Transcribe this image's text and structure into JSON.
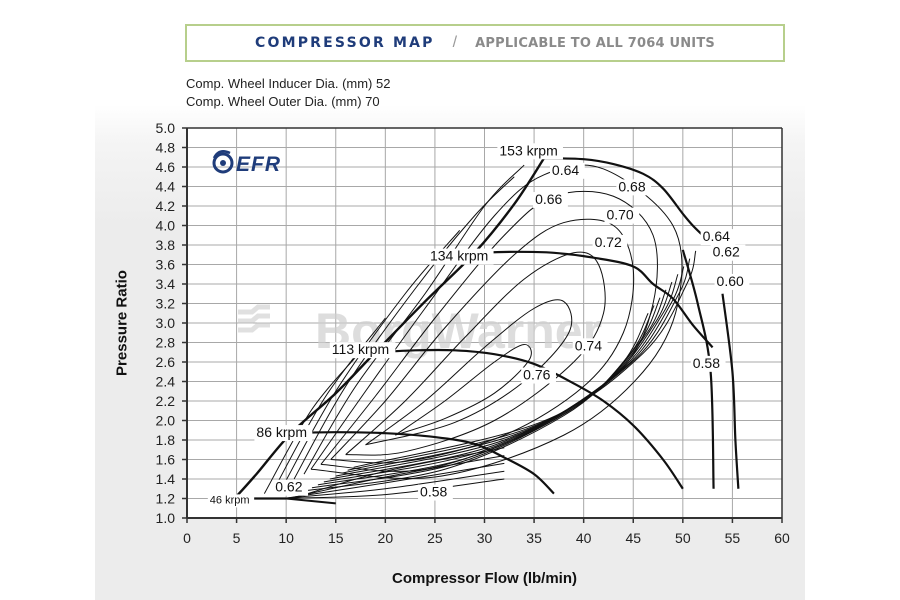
{
  "header": {
    "title": "COMPRESSOR MAP",
    "separator": "/",
    "subtitle": "APPLICABLE TO ALL 7064 UNITS",
    "accent_color": "#1f3c7a",
    "border_color": "#b7cf8c"
  },
  "specs": [
    "Comp. Wheel Inducer Dia. (mm) 52",
    "Comp. Wheel Outer Dia. (mm) 70"
  ],
  "logo": {
    "text": "EFR",
    "icon": "turbo-swirl-icon",
    "color": "#1f3c7a"
  },
  "watermark": {
    "text": "BorgWarner"
  },
  "chart_data": {
    "type": "line",
    "title": "COMPRESSOR MAP / APPLICABLE TO ALL 7064 UNITS",
    "xlabel": "Compressor Flow (lb/min)",
    "ylabel": "Pressure Ratio",
    "xlim": [
      0,
      60
    ],
    "ylim": [
      1.0,
      5.0
    ],
    "grid": true,
    "x_ticks": [
      "0",
      "5",
      "10",
      "15",
      "20",
      "25",
      "30",
      "35",
      "40",
      "45",
      "50",
      "55",
      "60"
    ],
    "y_ticks": [
      "1.0",
      "1.2",
      "1.4",
      "1.6",
      "1.8",
      "2.0",
      "2.2",
      "2.4",
      "2.6",
      "2.8",
      "3.0",
      "3.2",
      "3.4",
      "3.6",
      "3.8",
      "4.0",
      "4.2",
      "4.4",
      "4.6",
      "4.8",
      "5.0"
    ],
    "speed_lines": [
      {
        "name": "153 krpm",
        "points": [
          [
            36,
            4.69
          ],
          [
            40,
            4.68
          ],
          [
            43,
            4.63
          ],
          [
            46,
            4.53
          ],
          [
            48,
            4.38
          ],
          [
            50,
            4.12
          ],
          [
            51,
            4.0
          ],
          [
            52,
            3.9
          ]
        ]
      },
      {
        "name": "134 krpm",
        "points": [
          [
            29,
            3.72
          ],
          [
            33,
            3.73
          ],
          [
            37,
            3.72
          ],
          [
            41,
            3.67
          ],
          [
            45,
            3.58
          ],
          [
            47,
            3.4
          ],
          [
            49,
            3.25
          ],
          [
            51,
            2.98
          ],
          [
            53,
            2.75
          ]
        ]
      },
      {
        "name": "113 krpm",
        "points": [
          [
            19,
            2.7
          ],
          [
            23,
            2.72
          ],
          [
            27,
            2.72
          ],
          [
            31,
            2.68
          ],
          [
            35,
            2.58
          ],
          [
            39,
            2.38
          ],
          [
            42,
            2.2
          ],
          [
            45,
            1.95
          ],
          [
            48,
            1.6
          ],
          [
            50,
            1.3
          ]
        ]
      },
      {
        "name": "86 krpm",
        "points": [
          [
            10.5,
            1.87
          ],
          [
            15,
            1.88
          ],
          [
            20,
            1.87
          ],
          [
            25,
            1.83
          ],
          [
            29,
            1.76
          ],
          [
            32,
            1.62
          ],
          [
            35,
            1.45
          ],
          [
            37,
            1.25
          ]
        ]
      },
      {
        "name": "46 krpm",
        "points": [
          [
            4.8,
            1.2
          ],
          [
            7,
            1.2
          ],
          [
            10,
            1.2
          ]
        ]
      }
    ],
    "surge_line": [
      [
        4.8,
        1.2
      ],
      [
        7,
        1.45
      ],
      [
        10.5,
        1.87
      ],
      [
        15,
        2.28
      ],
      [
        19,
        2.7
      ],
      [
        24,
        3.22
      ],
      [
        29,
        3.72
      ],
      [
        33,
        4.22
      ],
      [
        36,
        4.69
      ]
    ],
    "choke_lines": [
      {
        "points": [
          [
            50,
            3.75
          ],
          [
            51.5,
            3.2
          ],
          [
            52.8,
            2.5
          ],
          [
            53.1,
            1.3
          ]
        ]
      },
      {
        "points": [
          [
            54,
            3.3
          ],
          [
            55,
            2.5
          ],
          [
            55.3,
            1.8
          ],
          [
            55.6,
            1.3
          ]
        ]
      }
    ],
    "efficiency_islands": [
      "0.76",
      "0.74",
      "0.72",
      "0.70",
      "0.68",
      "0.66",
      "0.64",
      "0.62",
      "0.60",
      "0.58"
    ],
    "annotations": [
      {
        "text": "153 krpm",
        "x": 31.5,
        "y": 4.72
      },
      {
        "text": "134 krpm",
        "x": 24.5,
        "y": 3.64
      },
      {
        "text": "113 krpm",
        "x": 14.6,
        "y": 2.68
      },
      {
        "text": "86 krpm",
        "x": 7.0,
        "y": 1.83
      },
      {
        "text": "46 krpm",
        "x": 2.3,
        "y": 1.15
      },
      {
        "text": "0.64",
        "x": 36.8,
        "y": 4.52
      },
      {
        "text": "0.66",
        "x": 35.1,
        "y": 4.22
      },
      {
        "text": "0.68",
        "x": 43.5,
        "y": 4.35
      },
      {
        "text": "0.70",
        "x": 42.3,
        "y": 4.06
      },
      {
        "text": "0.72",
        "x": 41.1,
        "y": 3.78
      },
      {
        "text": "0.74",
        "x": 39.1,
        "y": 2.72
      },
      {
        "text": "0.76",
        "x": 33.9,
        "y": 2.42
      },
      {
        "text": "0.58",
        "x": 51.0,
        "y": 2.54
      },
      {
        "text": "0.64",
        "x": 52.0,
        "y": 3.84
      },
      {
        "text": "0.62",
        "x": 53.0,
        "y": 3.68
      },
      {
        "text": "0.60",
        "x": 53.4,
        "y": 3.38
      },
      {
        "text": "0.62",
        "x": 8.9,
        "y": 1.27
      },
      {
        "text": "0.58",
        "x": 23.5,
        "y": 1.22
      }
    ]
  }
}
